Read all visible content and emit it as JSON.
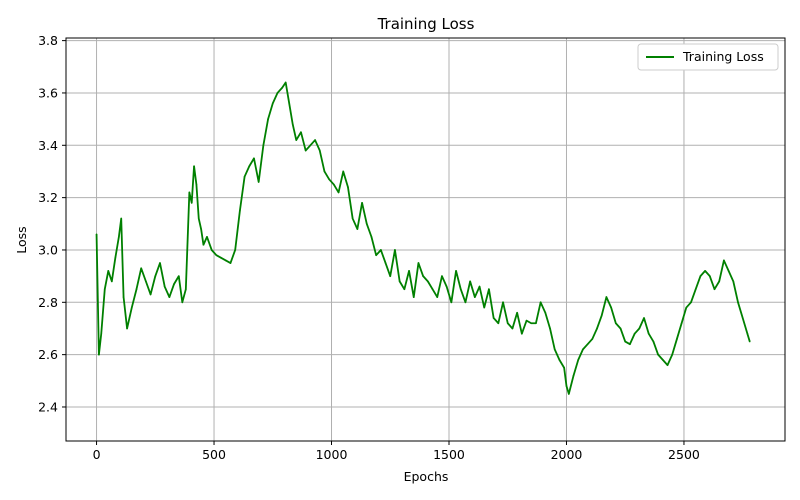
{
  "chart_data": {
    "type": "line",
    "title": "Training Loss",
    "xlabel": "Epochs",
    "ylabel": "Loss",
    "xlim": [
      -130,
      2930
    ],
    "ylim": [
      2.27,
      3.81
    ],
    "xticks": [
      0,
      500,
      1000,
      1500,
      2000,
      2500
    ],
    "yticks": [
      2.4,
      2.6,
      2.8,
      3.0,
      3.2,
      3.4,
      3.6,
      3.8
    ],
    "grid": true,
    "legend_position": "top-right",
    "series": [
      {
        "name": "Training Loss",
        "color": "#008000",
        "x": [
          0,
          10,
          20,
          35,
          50,
          65,
          80,
          95,
          105,
          115,
          130,
          150,
          170,
          190,
          210,
          230,
          250,
          270,
          290,
          310,
          330,
          350,
          365,
          380,
          395,
          405,
          415,
          425,
          435,
          445,
          455,
          470,
          490,
          510,
          530,
          550,
          570,
          590,
          610,
          630,
          650,
          670,
          690,
          710,
          730,
          750,
          770,
          790,
          805,
          820,
          835,
          850,
          870,
          890,
          910,
          930,
          950,
          970,
          990,
          1010,
          1030,
          1050,
          1070,
          1090,
          1110,
          1130,
          1150,
          1170,
          1190,
          1210,
          1230,
          1250,
          1270,
          1290,
          1310,
          1330,
          1350,
          1370,
          1390,
          1410,
          1430,
          1450,
          1470,
          1490,
          1510,
          1530,
          1550,
          1570,
          1590,
          1610,
          1630,
          1650,
          1670,
          1690,
          1710,
          1730,
          1750,
          1770,
          1790,
          1810,
          1830,
          1850,
          1870,
          1890,
          1910,
          1930,
          1950,
          1970,
          1990,
          2000,
          2010,
          2030,
          2050,
          2070,
          2090,
          2110,
          2130,
          2150,
          2170,
          2190,
          2210,
          2230,
          2250,
          2270,
          2290,
          2310,
          2330,
          2350,
          2370,
          2390,
          2410,
          2430,
          2450,
          2470,
          2490,
          2510,
          2530,
          2550,
          2570,
          2590,
          2610,
          2630,
          2650,
          2670,
          2690,
          2710,
          2730,
          2750,
          2770,
          2780
        ],
        "values": [
          3.06,
          2.6,
          2.68,
          2.85,
          2.92,
          2.88,
          2.97,
          3.05,
          3.12,
          2.82,
          2.7,
          2.78,
          2.85,
          2.93,
          2.88,
          2.83,
          2.9,
          2.95,
          2.86,
          2.82,
          2.87,
          2.9,
          2.8,
          2.85,
          3.22,
          3.18,
          3.32,
          3.25,
          3.12,
          3.08,
          3.02,
          3.05,
          3.0,
          2.98,
          2.97,
          2.96,
          2.95,
          3.0,
          3.15,
          3.28,
          3.32,
          3.35,
          3.26,
          3.4,
          3.5,
          3.56,
          3.6,
          3.62,
          3.64,
          3.56,
          3.48,
          3.42,
          3.45,
          3.38,
          3.4,
          3.42,
          3.38,
          3.3,
          3.27,
          3.25,
          3.22,
          3.3,
          3.24,
          3.12,
          3.08,
          3.18,
          3.1,
          3.05,
          2.98,
          3.0,
          2.95,
          2.9,
          3.0,
          2.88,
          2.85,
          2.92,
          2.82,
          2.95,
          2.9,
          2.88,
          2.85,
          2.82,
          2.9,
          2.86,
          2.8,
          2.92,
          2.85,
          2.8,
          2.88,
          2.82,
          2.86,
          2.78,
          2.85,
          2.74,
          2.72,
          2.8,
          2.72,
          2.7,
          2.76,
          2.68,
          2.73,
          2.72,
          2.72,
          2.8,
          2.76,
          2.7,
          2.62,
          2.58,
          2.55,
          2.48,
          2.45,
          2.52,
          2.58,
          2.62,
          2.64,
          2.66,
          2.7,
          2.75,
          2.82,
          2.78,
          2.72,
          2.7,
          2.65,
          2.64,
          2.68,
          2.7,
          2.74,
          2.68,
          2.65,
          2.6,
          2.58,
          2.56,
          2.6,
          2.66,
          2.72,
          2.78,
          2.8,
          2.85,
          2.9,
          2.92,
          2.9,
          2.85,
          2.88,
          2.96,
          2.92,
          2.88,
          2.8,
          2.74,
          2.68,
          2.65
        ]
      }
    ]
  }
}
